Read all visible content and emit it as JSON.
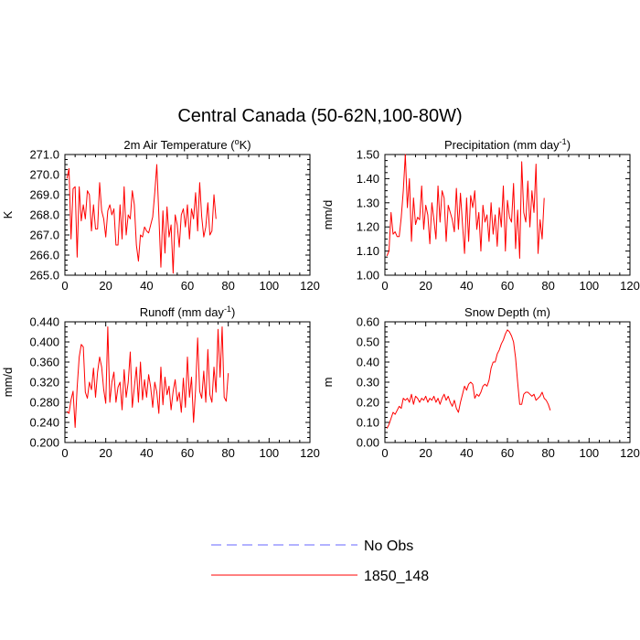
{
  "figure": {
    "title": "Central Canada (50-62N,100-80W)"
  },
  "legend": {
    "entries": [
      {
        "label": "No Obs",
        "color": "#6666ff",
        "dash": true
      },
      {
        "label": "1850_148",
        "color": "#ff0000",
        "dash": false
      }
    ]
  },
  "chart_data": [
    {
      "type": "line",
      "title_main": "2m Air Temperature (",
      "title_sup": "o",
      "title_tail": "K)",
      "ylabel": "K",
      "xlim": [
        0,
        120
      ],
      "xticks": [
        0,
        20,
        40,
        60,
        80,
        100,
        120
      ],
      "xtick_labels": [
        "0",
        "20",
        "40",
        "60",
        "80",
        "100",
        "120"
      ],
      "ylim": [
        265.0,
        271.0
      ],
      "yticks": [
        265.0,
        266.0,
        267.0,
        268.0,
        269.0,
        270.0,
        271.0
      ],
      "ytick_labels": [
        "265.0",
        "266.0",
        "267.0",
        "268.0",
        "269.0",
        "270.0",
        "271.0"
      ],
      "series": [
        {
          "name": "1850_148",
          "color": "#ff0000",
          "y": [
            269.8,
            270.3,
            266.8,
            269.3,
            269.4,
            265.9,
            269.4,
            267.7,
            268.5,
            267.8,
            269.2,
            269.0,
            267.2,
            268.5,
            267.3,
            267.3,
            269.6,
            268.2,
            267.8,
            266.9,
            268.2,
            268.5,
            268.0,
            268.3,
            266.5,
            266.5,
            268.5,
            266.8,
            269.4,
            267.0,
            268.0,
            267.8,
            269.2,
            268.5,
            266.5,
            265.7,
            267.0,
            266.9,
            267.4,
            267.2,
            267.1,
            267.5,
            267.9,
            269.1,
            270.5,
            268.0,
            265.4,
            268.2,
            266.1,
            268.4,
            266.9,
            267.5,
            265.1,
            268.0,
            267.5,
            266.4,
            268.0,
            268.3,
            267.4,
            268.5,
            266.8,
            268.3,
            267.8,
            269.1,
            267.2,
            269.6,
            267.9,
            266.9,
            267.4,
            268.6,
            267.0,
            267.2,
            269.0,
            267.8
          ]
        }
      ]
    },
    {
      "type": "line",
      "title_main": "Precipitation (mm day",
      "title_sup": "-1",
      "title_tail": ")",
      "ylabel": "mm/d",
      "xlim": [
        0,
        120
      ],
      "xticks": [
        0,
        20,
        40,
        60,
        80,
        100,
        120
      ],
      "xtick_labels": [
        "0",
        "20",
        "40",
        "60",
        "80",
        "100",
        "120"
      ],
      "ylim": [
        1.0,
        1.5
      ],
      "yticks": [
        1.0,
        1.1,
        1.2,
        1.3,
        1.4,
        1.5
      ],
      "ytick_labels": [
        "1.00",
        "1.10",
        "1.20",
        "1.30",
        "1.40",
        "1.50"
      ],
      "series": [
        {
          "name": "1850_148",
          "color": "#ff0000",
          "y": [
            1.08,
            1.1,
            1.26,
            1.17,
            1.18,
            1.16,
            1.16,
            1.24,
            1.35,
            1.5,
            1.28,
            1.4,
            1.14,
            1.32,
            1.21,
            1.24,
            1.23,
            1.37,
            1.19,
            1.29,
            1.25,
            1.13,
            1.3,
            1.23,
            1.15,
            1.37,
            1.22,
            1.35,
            1.32,
            1.14,
            1.29,
            1.26,
            1.23,
            1.18,
            1.36,
            1.19,
            1.34,
            1.21,
            1.09,
            1.32,
            1.14,
            1.33,
            1.28,
            1.35,
            1.19,
            1.26,
            1.1,
            1.29,
            1.22,
            1.25,
            1.14,
            1.3,
            1.17,
            1.25,
            1.12,
            1.28,
            1.2,
            1.37,
            1.1,
            1.31,
            1.24,
            1.22,
            1.38,
            1.11,
            1.27,
            1.07,
            1.47,
            1.26,
            1.22,
            1.39,
            1.2,
            1.35,
            1.26,
            1.46,
            1.09,
            1.23,
            1.15,
            1.32
          ]
        }
      ]
    },
    {
      "type": "line",
      "title_main": "Runoff (mm day",
      "title_sup": "-1",
      "title_tail": ")",
      "ylabel": "mm/d",
      "xlim": [
        0,
        120
      ],
      "xticks": [
        0,
        20,
        40,
        60,
        80,
        100,
        120
      ],
      "xtick_labels": [
        "0",
        "20",
        "40",
        "60",
        "80",
        "100",
        "120"
      ],
      "ylim": [
        0.2,
        0.44
      ],
      "yticks": [
        0.2,
        0.24,
        0.28,
        0.32,
        0.36,
        0.4,
        0.44
      ],
      "ytick_labels": [
        "0.200",
        "0.240",
        "0.280",
        "0.320",
        "0.360",
        "0.400",
        "0.440"
      ],
      "series": [
        {
          "name": "1850_148",
          "color": "#ff0000",
          "y": [
            0.262,
            0.258,
            0.285,
            0.302,
            0.23,
            0.31,
            0.37,
            0.395,
            0.39,
            0.3,
            0.288,
            0.32,
            0.305,
            0.348,
            0.29,
            0.34,
            0.37,
            0.35,
            0.305,
            0.278,
            0.43,
            0.28,
            0.32,
            0.34,
            0.28,
            0.31,
            0.32,
            0.265,
            0.345,
            0.29,
            0.32,
            0.38,
            0.27,
            0.31,
            0.35,
            0.28,
            0.36,
            0.285,
            0.325,
            0.29,
            0.335,
            0.31,
            0.27,
            0.32,
            0.3,
            0.258,
            0.35,
            0.275,
            0.33,
            0.295,
            0.312,
            0.265,
            0.302,
            0.325,
            0.282,
            0.3,
            0.26,
            0.328,
            0.27,
            0.37,
            0.29,
            0.33,
            0.24,
            0.305,
            0.408,
            0.302,
            0.288,
            0.342,
            0.28,
            0.385,
            0.295,
            0.28,
            0.35,
            0.3,
            0.425,
            0.33,
            0.43,
            0.29,
            0.282,
            0.338
          ]
        }
      ]
    },
    {
      "type": "line",
      "title_main": "Snow Depth (m)",
      "title_sup": "",
      "title_tail": "",
      "ylabel": "m",
      "xlim": [
        0,
        120
      ],
      "xticks": [
        0,
        20,
        40,
        60,
        80,
        100,
        120
      ],
      "xtick_labels": [
        "0",
        "20",
        "40",
        "60",
        "80",
        "100",
        "120"
      ],
      "ylim": [
        0.0,
        0.6
      ],
      "yticks": [
        0.0,
        0.1,
        0.2,
        0.3,
        0.4,
        0.5,
        0.6
      ],
      "ytick_labels": [
        "0.00",
        "0.10",
        "0.20",
        "0.30",
        "0.40",
        "0.50",
        "0.60"
      ],
      "series": [
        {
          "name": "1850_148",
          "color": "#ff0000",
          "y": [
            0.07,
            0.09,
            0.12,
            0.15,
            0.14,
            0.16,
            0.18,
            0.17,
            0.22,
            0.21,
            0.22,
            0.2,
            0.24,
            0.19,
            0.23,
            0.22,
            0.2,
            0.22,
            0.21,
            0.23,
            0.2,
            0.22,
            0.21,
            0.23,
            0.2,
            0.22,
            0.19,
            0.22,
            0.24,
            0.21,
            0.23,
            0.2,
            0.18,
            0.21,
            0.17,
            0.15,
            0.2,
            0.24,
            0.28,
            0.26,
            0.29,
            0.3,
            0.29,
            0.22,
            0.24,
            0.23,
            0.25,
            0.28,
            0.29,
            0.28,
            0.31,
            0.37,
            0.4,
            0.4,
            0.44,
            0.46,
            0.49,
            0.51,
            0.54,
            0.56,
            0.55,
            0.53,
            0.5,
            0.42,
            0.3,
            0.19,
            0.19,
            0.24,
            0.25,
            0.25,
            0.24,
            0.23,
            0.24,
            0.21,
            0.22,
            0.23,
            0.25,
            0.22,
            0.21,
            0.19,
            0.16
          ]
        }
      ]
    }
  ]
}
